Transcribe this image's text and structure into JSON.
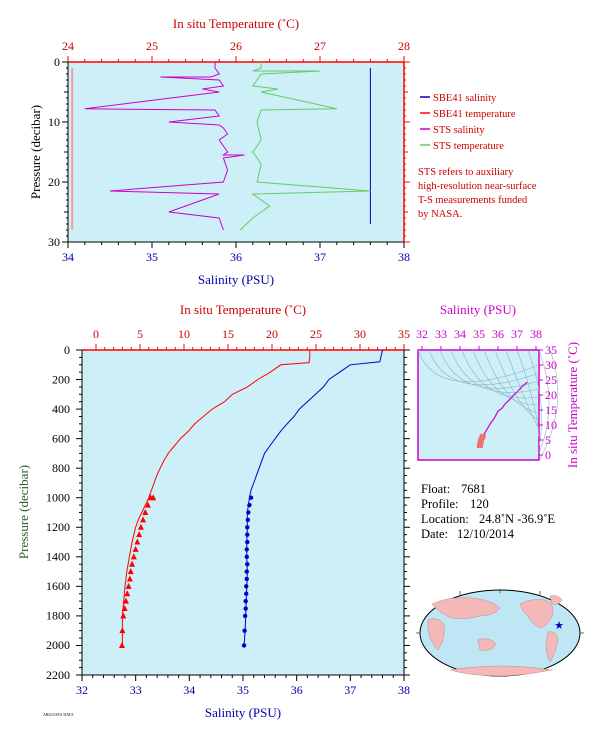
{
  "colors": {
    "plot_bg": "#cdeff8",
    "red": "#ff0000",
    "blue": "#0000cc",
    "magenta": "#cc00cc",
    "green": "#66cc66",
    "pressure_label": "#2e5a2e",
    "note": "#cc0000"
  },
  "top_chart": {
    "temp_axis_title": "In situ Temperature (˚C)",
    "sal_axis_title": "Salinity (PSU)",
    "pressure_axis_title": "Pressure (decibar)",
    "temp_ticks": [
      "24",
      "25",
      "26",
      "27",
      "28"
    ],
    "sal_ticks": [
      "34",
      "35",
      "36",
      "37",
      "38"
    ],
    "pressure_ticks": [
      "0",
      "10",
      "20",
      "30"
    ],
    "legend": [
      {
        "label": "SBE41 salinity",
        "color": "#0000cc"
      },
      {
        "label": "SBE41 temperature",
        "color": "#ff0000"
      },
      {
        "label": "STS salinity",
        "color": "#cc00cc"
      },
      {
        "label": "STS temperature",
        "color": "#66cc66"
      }
    ],
    "note_lines": [
      "STS refers to auxiliary",
      "high-resolution near-surface",
      "T-S measurements funded",
      "by NASA."
    ]
  },
  "main_chart": {
    "temp_axis_title": "In situ Temperature (˚C)",
    "sal_axis_title": "Salinity (PSU)",
    "pressure_axis_title": "Pressure (decibar)",
    "temp_ticks": [
      "0",
      "5",
      "10",
      "15",
      "20",
      "25",
      "30",
      "35"
    ],
    "sal_ticks": [
      "32",
      "33",
      "34",
      "35",
      "36",
      "37",
      "38"
    ],
    "pressure_ticks": [
      "0",
      "200",
      "400",
      "600",
      "800",
      "1000",
      "1200",
      "1400",
      "1600",
      "1800",
      "2000",
      "2200"
    ]
  },
  "ts_chart": {
    "sal_axis_title": "Salinity (PSU)",
    "temp_axis_title": "In situ Temperature (˚C)",
    "sal_ticks": [
      "32",
      "33",
      "34",
      "35",
      "36",
      "37",
      "38"
    ],
    "temp_ticks": [
      "35",
      "30",
      "25",
      "20",
      "15",
      "10",
      "5",
      "0"
    ]
  },
  "float_info": {
    "float_label": "Float:",
    "float_value": "7681",
    "profile_label": "Profile:",
    "profile_value": "120",
    "location_label": "Location:",
    "location_value": "24.8˚N  -36.9˚E",
    "date_label": "Date:",
    "date_value": "12/10/2014"
  },
  "chart_data": [
    {
      "type": "line",
      "title": "",
      "xlabel": "Salinity (PSU)",
      "x2label": "In situ Temperature (˚C)",
      "ylabel": "Pressure (decibar)",
      "xlim_salinity": [
        34,
        38
      ],
      "xlim_temperature": [
        24,
        28
      ],
      "ylim": [
        0,
        30
      ],
      "grid": false,
      "legend_position": "right",
      "series": [
        {
          "name": "SBE41 salinity",
          "x": [
            37.6,
            37.6
          ],
          "y": [
            1,
            27
          ]
        },
        {
          "name": "SBE41 temperature",
          "x": [
            24.05,
            24.05
          ],
          "y": [
            1,
            28
          ]
        },
        {
          "name": "STS salinity",
          "x": [
            35.75,
            35.75,
            35.8,
            35.7,
            35.1,
            35.8,
            35.85,
            35.6,
            35.8,
            34.2,
            35.75,
            35.8,
            35.2,
            35.8,
            35.85,
            35.9,
            35.8,
            35.85,
            35.9,
            35.85,
            36.1,
            35.85,
            35.9,
            35.85,
            34.5,
            35.8,
            35.2,
            35.8,
            35.85
          ],
          "y": [
            0,
            1,
            2,
            2.5,
            2.5,
            3,
            4,
            4.5,
            5,
            7.8,
            8,
            9,
            10,
            10.5,
            11,
            12,
            13,
            14,
            15,
            15.5,
            15.5,
            16,
            18,
            20,
            21.5,
            22,
            25,
            26,
            28
          ]
        },
        {
          "name": "STS temperature",
          "x": [
            26.3,
            26.3,
            26.2,
            27.0,
            26.3,
            26.2,
            26.5,
            26.3,
            27.2,
            26.3,
            26.25,
            26.3,
            26.2,
            26.3,
            26.25,
            27.6,
            26.2,
            26.4,
            26.2,
            26.05
          ],
          "y": [
            0,
            1,
            1.5,
            1.5,
            2,
            4,
            4.5,
            5,
            7.8,
            8,
            10,
            13,
            15,
            17,
            20,
            21.5,
            22,
            24,
            26,
            28
          ]
        }
      ]
    },
    {
      "type": "line",
      "title": "",
      "xlabel": "Salinity (PSU)",
      "x2label": "In situ Temperature (˚C)",
      "ylabel": "Pressure (decibar)",
      "xlim_salinity": [
        32,
        38
      ],
      "xlim_temperature": [
        0,
        35
      ],
      "ylim": [
        0,
        2200
      ],
      "grid": false,
      "series": [
        {
          "name": "temperature",
          "x": [
            24.3,
            24.3,
            24.2,
            21,
            19.8,
            18.4,
            17.2,
            15.5,
            14.6,
            13.2,
            12.2,
            11.2,
            10.5,
            9.6,
            8.9,
            8.2,
            7.7,
            7.3,
            6.9,
            6.6,
            6.3,
            6.0,
            5.6,
            5.2,
            4.8,
            4.5,
            4.1,
            3.8,
            3.5,
            3.3,
            3.15,
            3.0,
            3.0,
            3.0
          ],
          "y": [
            0,
            50,
            85,
            100,
            150,
            200,
            250,
            300,
            350,
            400,
            450,
            500,
            550,
            600,
            650,
            700,
            750,
            800,
            850,
            900,
            950,
            1000,
            1050,
            1100,
            1150,
            1200,
            1300,
            1400,
            1500,
            1600,
            1700,
            1800,
            1900,
            2000
          ]
        },
        {
          "name": "temperature markers",
          "x": [
            6.5,
            6.2,
            5.9,
            5.6,
            5.35,
            5.1,
            4.9,
            4.7,
            4.5,
            4.3,
            4.1,
            3.95,
            3.85,
            3.7,
            3.55,
            3.4,
            3.25,
            3.1,
            3.0,
            2.95
          ],
          "y": [
            1000,
            1000,
            1050,
            1100,
            1150,
            1200,
            1250,
            1300,
            1350,
            1400,
            1450,
            1500,
            1550,
            1600,
            1650,
            1700,
            1750,
            1800,
            1900,
            2000
          ]
        },
        {
          "name": "salinity",
          "x": [
            37.6,
            37.55,
            37.0,
            36.8,
            36.6,
            36.5,
            36.35,
            36.2,
            36.05,
            35.95,
            35.82,
            35.7,
            35.6,
            35.5,
            35.4,
            35.35,
            35.3,
            35.25,
            35.2,
            35.15,
            35.12,
            35.1,
            35.08,
            35.08,
            35.07,
            35.07,
            35.08,
            35.07,
            35.06,
            35.05,
            35.04,
            35.03,
            35.02
          ],
          "y": [
            0,
            80,
            100,
            150,
            200,
            250,
            300,
            350,
            400,
            450,
            500,
            550,
            600,
            650,
            700,
            750,
            800,
            850,
            900,
            950,
            1000,
            1050,
            1100,
            1200,
            1300,
            1400,
            1500,
            1600,
            1700,
            1800,
            1900,
            1950,
            2000
          ]
        },
        {
          "name": "salinity markers",
          "x": [
            35.15,
            35.12,
            35.1,
            35.09,
            35.08,
            35.08,
            35.08,
            35.07,
            35.07,
            35.08,
            35.07,
            35.07,
            35.06,
            35.06,
            35.05,
            35.05,
            35.04,
            35.03,
            35.02
          ],
          "y": [
            1000,
            1050,
            1100,
            1150,
            1200,
            1250,
            1300,
            1350,
            1400,
            1450,
            1500,
            1550,
            1600,
            1650,
            1700,
            1750,
            1800,
            1900,
            2000
          ]
        }
      ]
    },
    {
      "type": "scatter",
      "title": "",
      "xlabel": "Salinity (PSU)",
      "ylabel": "In situ Temperature (˚C)",
      "xlim": [
        32,
        38
      ],
      "ylim": [
        -2,
        35
      ],
      "series": [
        {
          "name": "T-S profile",
          "x": [
            35.05,
            35.07,
            35.1,
            35.15,
            35.2,
            35.3,
            35.45,
            35.6,
            35.8,
            36.0,
            36.2,
            36.4,
            36.6,
            36.8,
            37.0,
            37.3,
            37.55
          ],
          "y": [
            3.0,
            3.8,
            4.8,
            5.6,
            6.3,
            7.3,
            8.9,
            10.5,
            12.2,
            14.6,
            15.5,
            17.2,
            18.4,
            19.8,
            21,
            23,
            24.3
          ]
        }
      ]
    }
  ]
}
